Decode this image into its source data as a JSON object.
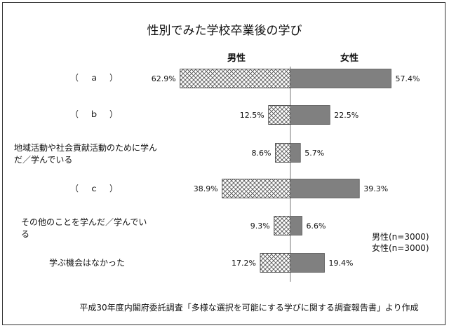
{
  "chart_data": {
    "type": "bar",
    "title": "性別でみた学校卒業後の学び",
    "series": [
      {
        "name": "男性",
        "values": [
          62.9,
          12.5,
          8.6,
          38.9,
          9.3,
          17.2
        ],
        "fill": "crosshatch"
      },
      {
        "name": "女性",
        "values": [
          57.4,
          22.5,
          5.7,
          39.3,
          6.6,
          19.4
        ],
        "fill": "#808080"
      }
    ],
    "categories": [
      "（　ａ　）",
      "（　ｂ　）",
      "地域活動や社会貢献活動のために学んだ／学んでいる",
      "（　ｃ　）",
      "その他のことを学んだ／学んでいる",
      "学ぶ機会はなかった"
    ],
    "value_suffix": "%",
    "legend": [
      "男性(n=3000)",
      "女性(n=3000)"
    ],
    "legend_placement": "bottom-right",
    "source": "平成30年度内閣府委託調査「多様な選択を可能にする学びに関する調査報告書」より作成",
    "grid": false
  },
  "colors": {
    "female_bar": "#808080",
    "male_hatch": "#555555",
    "axis": "#777777"
  }
}
